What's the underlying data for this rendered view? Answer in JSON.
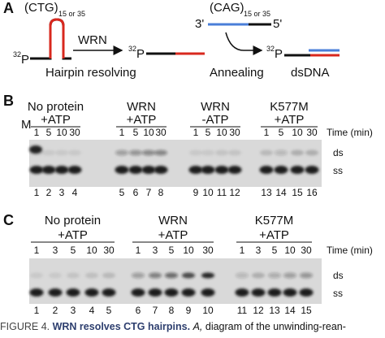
{
  "panel_a": {
    "label": "A",
    "ctg": "(CTG)",
    "ctg_sub": "15 or 35",
    "isotope_1": "32",
    "p_1": "P",
    "enzyme": "WRN",
    "isotope_2": "32",
    "p_2": "P",
    "step_1": "Hairpin resolving",
    "cag": "(CAG)",
    "cag_sub": "15 or 35",
    "end_3": "3'",
    "end_5": "5'",
    "step_2": "Annealing",
    "isotope_3": "32",
    "p_3": "P",
    "product": "dsDNA"
  },
  "panel_b": {
    "label": "B",
    "marker": "M",
    "time_label": "Time (min)",
    "band_ds": "ds",
    "band_ss": "ss",
    "groups": [
      {
        "name": "No protein",
        "condition": "+ATP",
        "times": [
          1,
          5,
          10,
          30
        ],
        "lanes": [
          1,
          2,
          3,
          4
        ]
      },
      {
        "name": "WRN",
        "condition": "+ATP",
        "times": [
          1,
          5,
          10,
          30
        ],
        "lanes": [
          5,
          6,
          7,
          8
        ]
      },
      {
        "name": "WRN",
        "condition": "-ATP",
        "times": [
          1,
          5,
          10,
          30
        ],
        "lanes": [
          9,
          10,
          11,
          12
        ]
      },
      {
        "name": "K577M",
        "condition": "+ATP",
        "times": [
          1,
          5,
          10,
          30
        ],
        "lanes": [
          13,
          14,
          15,
          16
        ]
      }
    ]
  },
  "panel_c": {
    "label": "C",
    "time_label": "Time (min)",
    "band_ds": "ds",
    "band_ss": "ss",
    "groups": [
      {
        "name": "No protein",
        "condition": "+ATP",
        "times": [
          1,
          3,
          5,
          10,
          30
        ],
        "lanes": [
          1,
          2,
          3,
          4,
          5
        ]
      },
      {
        "name": "WRN",
        "condition": "+ATP",
        "times": [
          1,
          3,
          5,
          10,
          30
        ],
        "lanes": [
          6,
          7,
          8,
          9,
          10
        ]
      },
      {
        "name": "K577M",
        "condition": "+ATP",
        "times": [
          1,
          3,
          5,
          10,
          30
        ],
        "lanes": [
          11,
          12,
          13,
          14,
          15
        ]
      }
    ]
  },
  "caption": {
    "figure": "FIGURE 4.",
    "title": "WRN resolves CTG hairpins.",
    "panel": "A,",
    "text": "diagram of the unwinding-rean-"
  }
}
